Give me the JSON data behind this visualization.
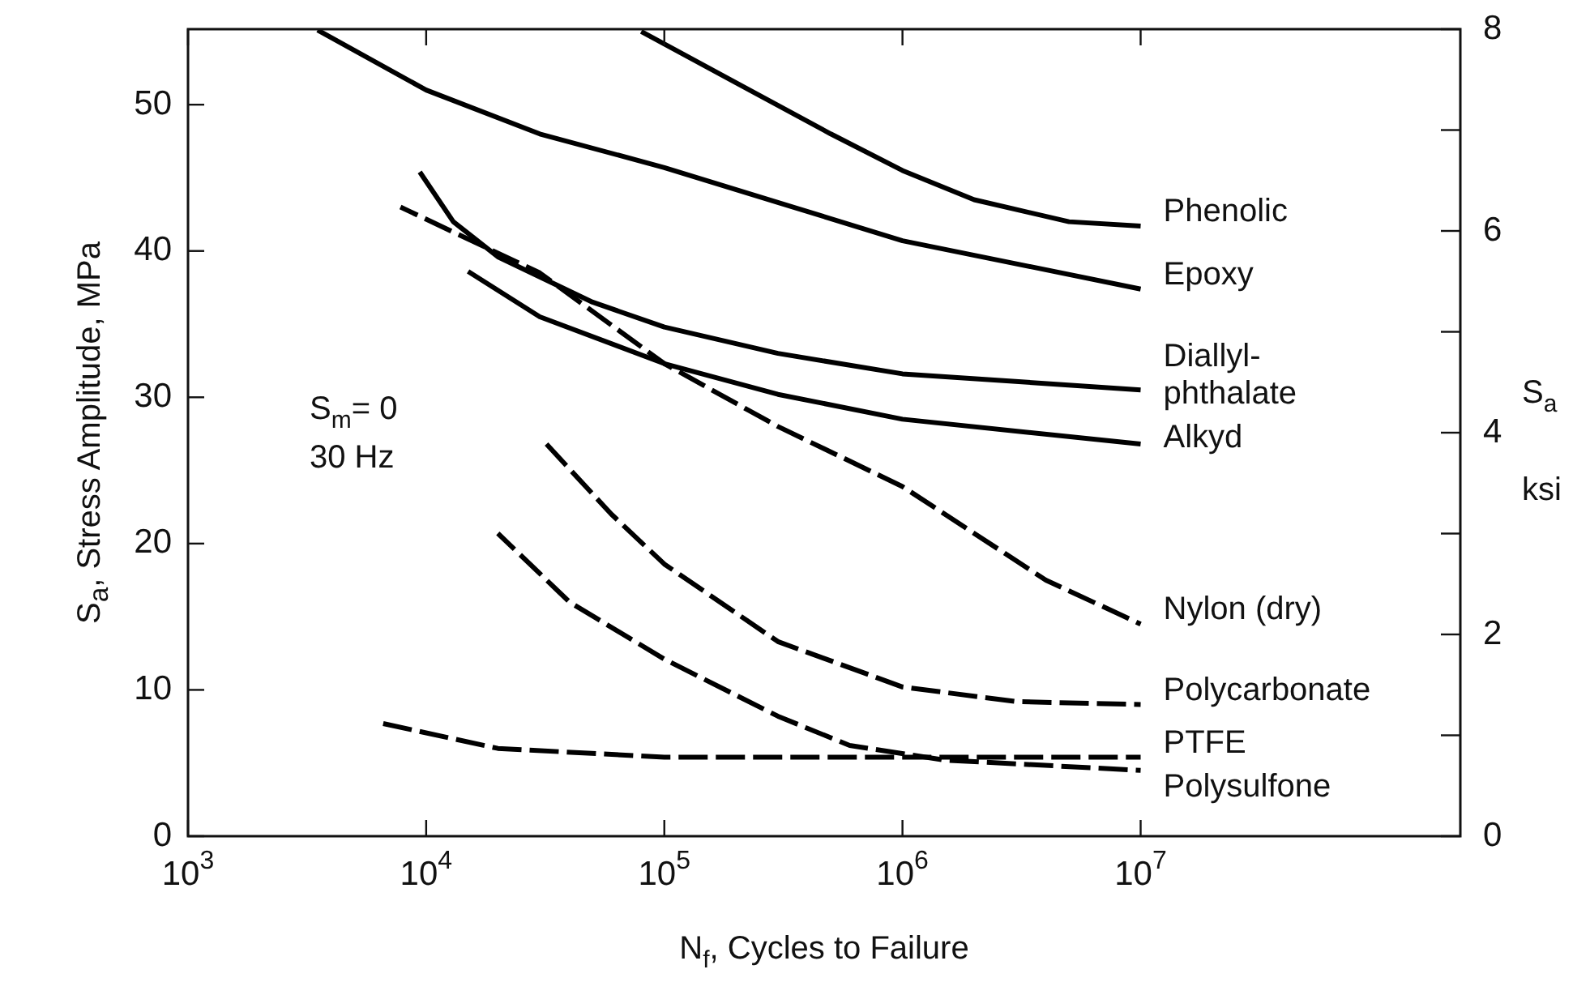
{
  "chart_data": {
    "type": "line",
    "xlabel": "N$_{f}$, Cycles to Failure",
    "ylabel": "S$_{a}$, Stress Amplitude, MPa",
    "y2label": "S$_{a}$ ksi",
    "log": "x",
    "grid": false,
    "legend": false,
    "marker": "none",
    "xlim": [
      1000,
      220000000
    ],
    "xticks": [
      {
        "value": 1000,
        "label": "10$^{3}$"
      },
      {
        "value": 10000,
        "label": "10$^{4}$"
      },
      {
        "value": 100000,
        "label": "10$^{5}$"
      },
      {
        "value": 1000000,
        "label": "10$^{6}$"
      },
      {
        "value": 10000000,
        "label": "10$^{7}$"
      }
    ],
    "ylim": [
      0,
      55.16
    ],
    "yticks": [
      0,
      10,
      20,
      30,
      40,
      50
    ],
    "y2lim": [
      0,
      8
    ],
    "y2ticks": [
      0,
      {
        "value": 1,
        "label": null
      },
      2,
      {
        "value": 3,
        "label": null
      },
      4,
      {
        "value": 5,
        "label": null
      },
      6,
      {
        "value": 7,
        "label": null
      },
      8
    ],
    "annotations": [
      "S$_{m}$= 0",
      "30 Hz"
    ],
    "series": [
      {
        "name": "Phenolic",
        "color": "#000000",
        "line_style": "solid",
        "x": [
          80000,
          200000,
          500000,
          1000000,
          2000000,
          5000000,
          10000000
        ],
        "values": [
          55,
          51.5,
          48,
          45.5,
          43.5,
          42,
          41.7
        ]
      },
      {
        "name": "Epoxy",
        "color": "#000000",
        "line_style": "solid",
        "x": [
          3500,
          10000,
          30000,
          100000,
          1000000,
          10000000
        ],
        "values": [
          55.1,
          51,
          48,
          45.7,
          40.7,
          37.4
        ]
      },
      {
        "name": "Diallyl-phthalate",
        "color": "#000000",
        "line_style": "solid",
        "x": [
          9400,
          13000,
          20000,
          50000,
          100000,
          300000,
          1000000,
          10000000
        ],
        "values": [
          45.4,
          42,
          39.6,
          36.5,
          34.8,
          33,
          31.6,
          30.5
        ]
      },
      {
        "name": "Alkyd",
        "color": "#000000",
        "line_style": "solid",
        "x": [
          15000,
          30000,
          100000,
          300000,
          1000000,
          10000000
        ],
        "values": [
          38.6,
          35.5,
          32.3,
          30.2,
          28.5,
          26.8
        ]
      },
      {
        "name": "Nylon (dry)",
        "color": "#000000",
        "line_style": "dashed",
        "x": [
          7800,
          30000,
          100000,
          300000,
          1000000,
          4000000,
          10000000
        ],
        "values": [
          43,
          38.5,
          32.3,
          28,
          23.9,
          17.5,
          14.5
        ]
      },
      {
        "name": "Polycarbonate",
        "color": "#000000",
        "line_style": "dashed",
        "x": [
          32000,
          60000,
          100000,
          300000,
          1000000,
          3000000,
          10000000
        ],
        "values": [
          26.8,
          22,
          18.6,
          13.3,
          10.2,
          9.2,
          9
        ]
      },
      {
        "name": "PTFE",
        "color": "#000000",
        "line_style": "dashed",
        "x": [
          6600,
          20000,
          100000,
          1000000,
          10000000
        ],
        "values": [
          7.7,
          6,
          5.4,
          5.4,
          5.4
        ]
      },
      {
        "name": "Polysulfone",
        "color": "#000000",
        "line_style": "dashed",
        "x": [
          20000,
          40000,
          100000,
          300000,
          600000,
          1500000,
          10000000
        ],
        "values": [
          20.7,
          16,
          12.1,
          8.2,
          6.2,
          5.2,
          4.5
        ]
      }
    ]
  }
}
